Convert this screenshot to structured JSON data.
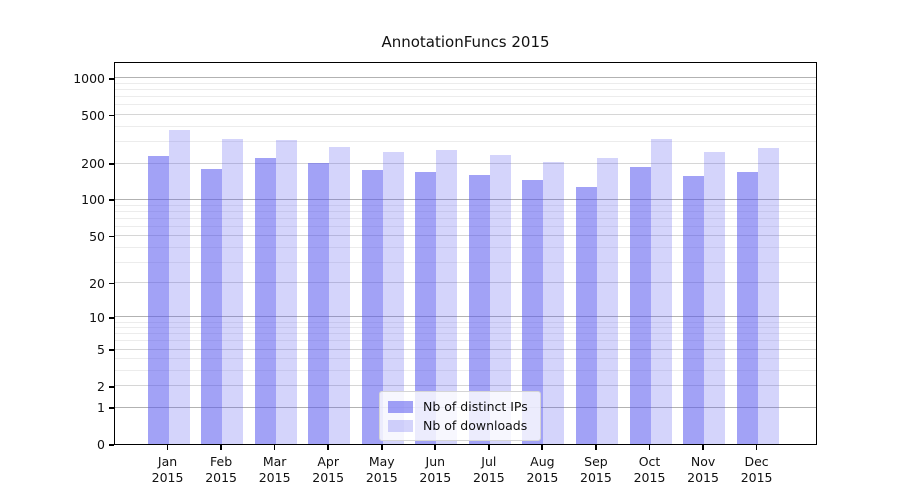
{
  "title": "AnnotationFuncs 2015",
  "legend": {
    "items": [
      {
        "label": "Nb of distinct IPs"
      },
      {
        "label": "Nb of downloads"
      }
    ]
  },
  "colors": {
    "bar_base": "#5555ee",
    "ip_bar_alpha": 0.55,
    "dl_bar_alpha": 0.25,
    "grid_major": "#b2b2b2",
    "grid_sub": "#d6d6d6",
    "grid_minor": "#ececec",
    "axis": "#000000"
  },
  "chart_data": {
    "type": "bar",
    "title": "AnnotationFuncs 2015",
    "categories": [
      "Jan",
      "Feb",
      "Mar",
      "Apr",
      "May",
      "Jun",
      "Jul",
      "Aug",
      "Sep",
      "Oct",
      "Nov",
      "Dec"
    ],
    "year_label": "2015",
    "series": [
      {
        "name": "Nb of distinct IPs",
        "values": [
          227,
          180,
          222,
          199,
          174,
          170,
          160,
          145,
          128,
          186,
          155,
          169
        ]
      },
      {
        "name": "Nb of downloads",
        "values": [
          374,
          315,
          312,
          270,
          247,
          255,
          234,
          203,
          221,
          313,
          248,
          267
        ]
      }
    ],
    "yscale": "log1p",
    "yticks": [
      0,
      1,
      2,
      5,
      10,
      20,
      50,
      100,
      200,
      500,
      1000
    ],
    "grid_sub_ticks": [
      2,
      5,
      20,
      50,
      200,
      500
    ],
    "grid_minor_ticks": [
      3,
      4,
      6,
      7,
      8,
      9,
      30,
      40,
      60,
      70,
      80,
      90,
      300,
      400,
      600,
      700,
      800,
      900
    ],
    "ylim": [
      0,
      1378
    ],
    "xlabel": "",
    "ylabel": "",
    "grid": "horizontal",
    "legend_position": "lower center"
  }
}
